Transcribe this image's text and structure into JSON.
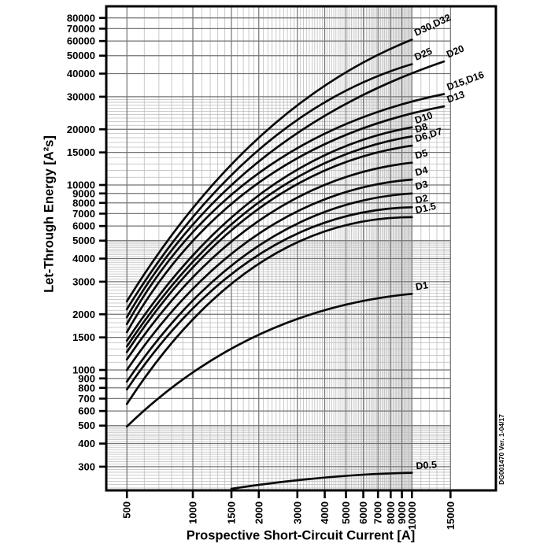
{
  "meta": {
    "version_note": "DG001470 Ver. 1-04/17"
  },
  "chart_data": {
    "type": "line",
    "title": "",
    "xlabel": "Prospective Short-Circuit Current [A]",
    "ylabel": "Let-Through Energy [A²s]",
    "x_axis": {
      "scale": "log",
      "range": [
        400,
        24000
      ],
      "grid_extends_to": 15000,
      "ticks": [
        500,
        1000,
        1500,
        2000,
        3000,
        4000,
        5000,
        6000,
        7000,
        8000,
        9000,
        10000,
        15000
      ],
      "minor_rules": [
        {
          "from": 600,
          "to": 900,
          "step": 100
        },
        {
          "from": 1100,
          "to": 9900,
          "step": 100
        },
        {
          "from": 11000,
          "to": 14000,
          "step": 1000
        }
      ]
    },
    "y_axis": {
      "scale": "log",
      "range": [
        223,
        92500
      ],
      "ticks": [
        300,
        400,
        500,
        600,
        700,
        800,
        900,
        1000,
        1500,
        2000,
        3000,
        4000,
        5000,
        6000,
        7000,
        8000,
        9000,
        10000,
        15000,
        20000,
        30000,
        40000,
        50000,
        60000,
        70000,
        80000
      ],
      "minor_rules": [
        {
          "from": 230,
          "to": 490,
          "step": 10
        },
        {
          "from": 1100,
          "to": 4900,
          "step": 100
        },
        {
          "from": 11000,
          "to": 29000,
          "step": 1000
        }
      ]
    },
    "grid": "log major+minor, on",
    "legend": "inline rotated labels at curve ends",
    "series": [
      {
        "name": "D30,D32",
        "points": [
          [
            500,
            2350
          ],
          [
            2000,
            18000
          ],
          [
            10000,
            61000
          ]
        ],
        "label_rot": -25
      },
      {
        "name": "D25",
        "points": [
          [
            500,
            2130
          ],
          [
            2000,
            15500
          ],
          [
            10000,
            45000
          ]
        ],
        "label_rot": -23
      },
      {
        "name": "D20",
        "points": [
          [
            500,
            1930
          ],
          [
            2000,
            13400
          ],
          [
            14000,
            46500
          ]
        ],
        "label_rot": -23
      },
      {
        "name": "D15,D16",
        "points": [
          [
            500,
            1770
          ],
          [
            2000,
            11600
          ],
          [
            14000,
            31000
          ]
        ],
        "label_rot": -20
      },
      {
        "name": "D13",
        "points": [
          [
            500,
            1600
          ],
          [
            2000,
            10300
          ],
          [
            14000,
            26600
          ]
        ],
        "label_rot": -19
      },
      {
        "name": "D10",
        "points": [
          [
            500,
            1440
          ],
          [
            2000,
            8800
          ],
          [
            10000,
            20500
          ]
        ],
        "label_rot": -19
      },
      {
        "name": "D8",
        "points": [
          [
            500,
            1340
          ],
          [
            2000,
            8050
          ],
          [
            10000,
            18300
          ]
        ],
        "label_rot": -17
      },
      {
        "name": "D6,D7",
        "points": [
          [
            500,
            1250
          ],
          [
            2000,
            7450
          ],
          [
            10000,
            16300
          ]
        ],
        "label_rot": -17
      },
      {
        "name": "D5",
        "points": [
          [
            500,
            1140
          ],
          [
            2000,
            6400
          ],
          [
            10000,
            13200
          ]
        ],
        "label_rot": -16
      },
      {
        "name": "D4",
        "points": [
          [
            500,
            1000
          ],
          [
            2000,
            5450
          ],
          [
            10000,
            10700
          ]
        ],
        "label_rot": -15
      },
      {
        "name": "D3",
        "points": [
          [
            500,
            865
          ],
          [
            2000,
            4700
          ],
          [
            10000,
            9000
          ]
        ],
        "label_rot": -14
      },
      {
        "name": "D2",
        "points": [
          [
            500,
            785
          ],
          [
            2000,
            4200
          ],
          [
            10000,
            7580
          ]
        ],
        "label_rot": -13
      },
      {
        "name": "D1.5",
        "points": [
          [
            500,
            655
          ],
          [
            2000,
            3750
          ],
          [
            10000,
            6700
          ]
        ],
        "label_rot": -13
      },
      {
        "name": "D1",
        "points": [
          [
            500,
            495
          ],
          [
            2000,
            1550
          ],
          [
            10000,
            2580
          ]
        ],
        "label_rot": -10
      },
      {
        "name": "D0.5",
        "points": [
          [
            1500,
            228
          ],
          [
            4000,
            262
          ],
          [
            10000,
            278
          ]
        ],
        "label_rot": -4
      }
    ],
    "colors": {
      "curve": "#0a0a0a",
      "grid_major": "#737373",
      "grid_minor": "#bcbcbc",
      "border": "#000000",
      "background": "#ffffff"
    }
  }
}
